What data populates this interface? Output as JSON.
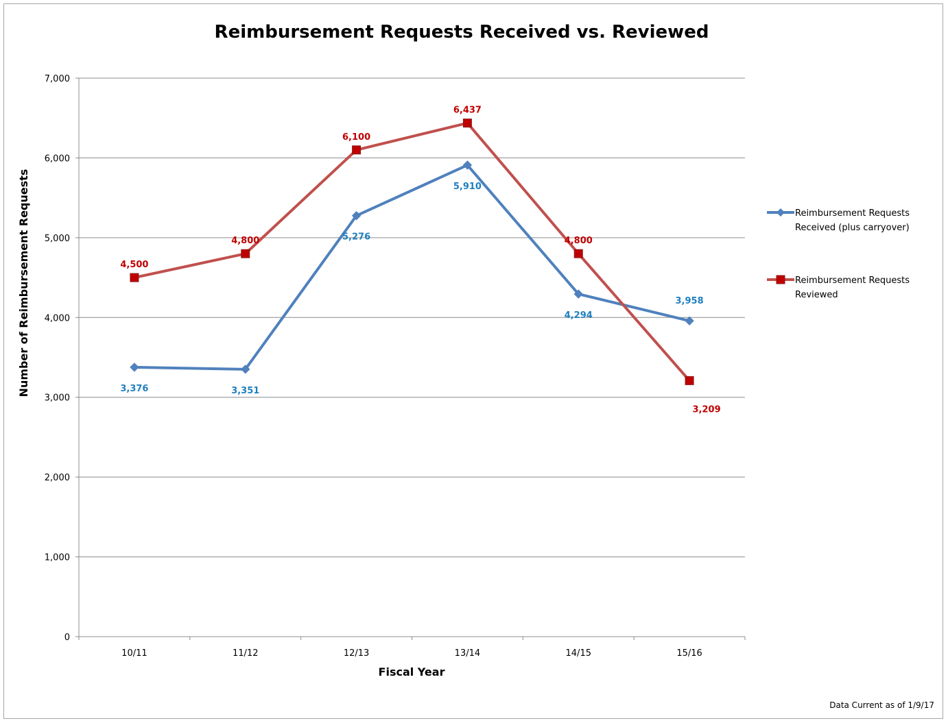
{
  "chart_data": {
    "type": "line",
    "title": "Reimbursement Requests Received vs. Reviewed",
    "xlabel": "Fiscal Year",
    "ylabel": "Number of Reimbursement Requests",
    "categories": [
      "10/11",
      "11/12",
      "12/13",
      "13/14",
      "14/15",
      "15/16"
    ],
    "ylim": [
      0,
      7000
    ],
    "yticks": [
      0,
      1000,
      2000,
      3000,
      4000,
      5000,
      6000,
      7000
    ],
    "ytick_labels": [
      "0",
      "1,000",
      "2,000",
      "3,000",
      "4,000",
      "5,000",
      "6,000",
      "7,000"
    ],
    "grid": true,
    "legend_position": "right",
    "series": [
      {
        "name_lines": [
          "Reimbursement Requests",
          "Received (plus carryover)"
        ],
        "values": [
          3376,
          3351,
          5276,
          5910,
          4294,
          3958
        ],
        "labels": [
          "3,376",
          "3,351",
          "5,276",
          "5,910",
          "4,294",
          "3,958"
        ],
        "color": "#4f81bd",
        "label_color": "#1f7fbf",
        "marker": "diamond"
      },
      {
        "name_lines": [
          "Reimbursement Requests",
          "Reviewed"
        ],
        "values": [
          4500,
          4800,
          6100,
          6437,
          4800,
          3209
        ],
        "labels": [
          "4,500",
          "4,800",
          "6,100",
          "6,437",
          "4,800",
          "3,209"
        ],
        "color": "#c0504d",
        "label_color": "#c00000",
        "marker": "square"
      }
    ],
    "note": "Data Current as of 1/9/17"
  }
}
